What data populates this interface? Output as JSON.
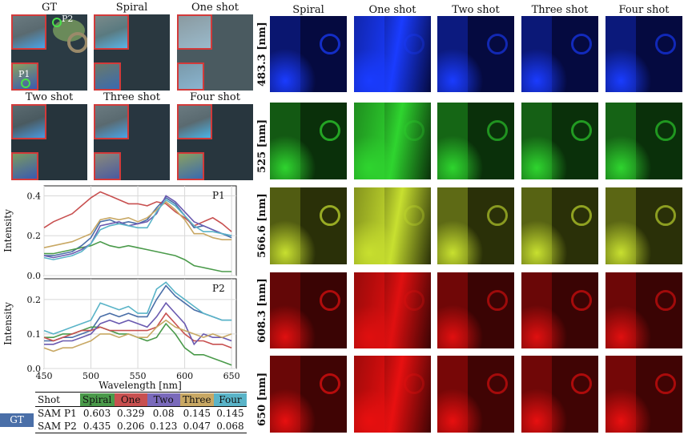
{
  "thumbnails": {
    "labels": [
      "GT",
      "Spiral",
      "One shot",
      "Two shot",
      "Three shot",
      "Four shot"
    ],
    "points": [
      "P1",
      "P2"
    ]
  },
  "grid": {
    "columns": [
      "Spiral",
      "One shot",
      "Two shot",
      "Three shot",
      "Four shot"
    ],
    "rows": [
      {
        "label": "483.3 [nm]",
        "color": "#1a3cff",
        "dark": "#050a40"
      },
      {
        "label": "525 [nm]",
        "color": "#2fd52f",
        "dark": "#0a300a"
      },
      {
        "label": "566.6 [nm]",
        "color": "#c8e030",
        "dark": "#2a3008"
      },
      {
        "label": "608.3 [nm]",
        "color": "#e01010",
        "dark": "#3a0404"
      },
      {
        "label": "650 [nm]",
        "color": "#e81010",
        "dark": "#400404"
      }
    ]
  },
  "chart_data": [
    {
      "type": "line",
      "title": "P1",
      "xlabel": "Wavelength [nm]",
      "ylabel": "Intensity",
      "xlim": [
        450,
        655
      ],
      "ylim": [
        0.0,
        0.45
      ],
      "yticks": [
        "0.0",
        "0.2",
        "0.4"
      ],
      "xticks": [
        "450",
        "500",
        "550",
        "600",
        "650"
      ],
      "x": [
        450,
        460,
        470,
        480,
        490,
        500,
        510,
        520,
        530,
        540,
        550,
        560,
        570,
        580,
        590,
        600,
        610,
        620,
        630,
        640,
        650
      ],
      "series": [
        {
          "name": "GT",
          "color": "#4a6fa8",
          "values": [
            0.1,
            0.1,
            0.11,
            0.12,
            0.15,
            0.19,
            0.27,
            0.28,
            0.26,
            0.27,
            0.26,
            0.28,
            0.34,
            0.39,
            0.36,
            0.3,
            0.24,
            0.25,
            0.23,
            0.21,
            0.19
          ]
        },
        {
          "name": "Spiral",
          "color": "#4a9a4a",
          "values": [
            0.11,
            0.11,
            0.12,
            0.13,
            0.14,
            0.15,
            0.17,
            0.15,
            0.14,
            0.15,
            0.14,
            0.13,
            0.12,
            0.11,
            0.1,
            0.08,
            0.05,
            0.04,
            0.03,
            0.02,
            0.02
          ]
        },
        {
          "name": "One",
          "color": "#c85050",
          "values": [
            0.24,
            0.27,
            0.29,
            0.31,
            0.35,
            0.39,
            0.42,
            0.4,
            0.38,
            0.36,
            0.36,
            0.35,
            0.37,
            0.36,
            0.32,
            0.29,
            0.25,
            0.27,
            0.29,
            0.26,
            0.22
          ]
        },
        {
          "name": "Two",
          "color": "#6a5ab0",
          "values": [
            0.1,
            0.09,
            0.1,
            0.11,
            0.13,
            0.16,
            0.25,
            0.26,
            0.27,
            0.25,
            0.26,
            0.27,
            0.31,
            0.4,
            0.37,
            0.32,
            0.27,
            0.25,
            0.23,
            0.21,
            0.2
          ]
        },
        {
          "name": "Three",
          "color": "#c8a864",
          "values": [
            0.14,
            0.15,
            0.16,
            0.17,
            0.19,
            0.21,
            0.28,
            0.29,
            0.28,
            0.29,
            0.27,
            0.29,
            0.33,
            0.37,
            0.33,
            0.28,
            0.21,
            0.21,
            0.19,
            0.18,
            0.18
          ]
        },
        {
          "name": "Four",
          "color": "#5ab4c8",
          "values": [
            0.09,
            0.08,
            0.09,
            0.1,
            0.12,
            0.16,
            0.23,
            0.25,
            0.26,
            0.25,
            0.24,
            0.24,
            0.32,
            0.38,
            0.35,
            0.3,
            0.25,
            0.22,
            0.22,
            0.21,
            0.2
          ]
        }
      ]
    },
    {
      "type": "line",
      "title": "P2",
      "xlabel": "Wavelength [nm]",
      "ylabel": "Intensity",
      "xlim": [
        450,
        655
      ],
      "ylim": [
        0.0,
        0.26
      ],
      "yticks": [
        "0.0",
        "0.1",
        "0.2"
      ],
      "xticks": [
        "450",
        "500",
        "550",
        "600",
        "650"
      ],
      "x": [
        450,
        460,
        470,
        480,
        490,
        500,
        510,
        520,
        530,
        540,
        550,
        560,
        570,
        580,
        590,
        600,
        610,
        620,
        630,
        640,
        650
      ],
      "series": [
        {
          "name": "GT",
          "color": "#4a6fa8",
          "values": [
            0.08,
            0.08,
            0.09,
            0.09,
            0.1,
            0.11,
            0.15,
            0.16,
            0.15,
            0.16,
            0.15,
            0.15,
            0.2,
            0.24,
            0.21,
            0.19,
            0.17,
            0.16,
            0.15,
            0.14,
            0.14
          ]
        },
        {
          "name": "Spiral",
          "color": "#4a9a4a",
          "values": [
            0.09,
            0.09,
            0.1,
            0.1,
            0.11,
            0.12,
            0.12,
            0.11,
            0.1,
            0.1,
            0.09,
            0.08,
            0.09,
            0.13,
            0.1,
            0.06,
            0.04,
            0.04,
            0.03,
            0.02,
            0.01
          ]
        },
        {
          "name": "One",
          "color": "#c85050",
          "values": [
            0.09,
            0.08,
            0.09,
            0.1,
            0.11,
            0.11,
            0.12,
            0.11,
            0.11,
            0.11,
            0.11,
            0.11,
            0.12,
            0.16,
            0.13,
            0.1,
            0.08,
            0.08,
            0.07,
            0.07,
            0.06
          ]
        },
        {
          "name": "Two",
          "color": "#6a5ab0",
          "values": [
            0.07,
            0.07,
            0.08,
            0.08,
            0.09,
            0.1,
            0.13,
            0.14,
            0.13,
            0.14,
            0.13,
            0.12,
            0.15,
            0.19,
            0.16,
            0.13,
            0.07,
            0.1,
            0.09,
            0.09,
            0.08
          ]
        },
        {
          "name": "Three",
          "color": "#c8a864",
          "values": [
            0.06,
            0.05,
            0.06,
            0.06,
            0.07,
            0.08,
            0.1,
            0.1,
            0.09,
            0.1,
            0.09,
            0.09,
            0.12,
            0.14,
            0.12,
            0.11,
            0.1,
            0.09,
            0.1,
            0.09,
            0.1
          ]
        },
        {
          "name": "Four",
          "color": "#5ab4c8",
          "values": [
            0.11,
            0.1,
            0.11,
            0.12,
            0.13,
            0.14,
            0.19,
            0.18,
            0.17,
            0.18,
            0.16,
            0.16,
            0.23,
            0.25,
            0.22,
            0.2,
            0.18,
            0.16,
            0.15,
            0.14,
            0.14
          ]
        }
      ]
    }
  ],
  "table": {
    "header": [
      "Shot",
      "Spiral",
      "One",
      "Two",
      "Three",
      "Four"
    ],
    "header_colors": [
      "",
      "#4a9a4a",
      "#c85050",
      "#7a6abb",
      "#c8a864",
      "#5ab4c8"
    ],
    "gt_label": "GT",
    "rows": [
      [
        "SAM P1",
        "0.603",
        "0.329",
        "0.08",
        "0.145",
        "0.145"
      ],
      [
        "SAM P2",
        "0.435",
        "0.206",
        "0.123",
        "0.047",
        "0.068"
      ]
    ]
  }
}
